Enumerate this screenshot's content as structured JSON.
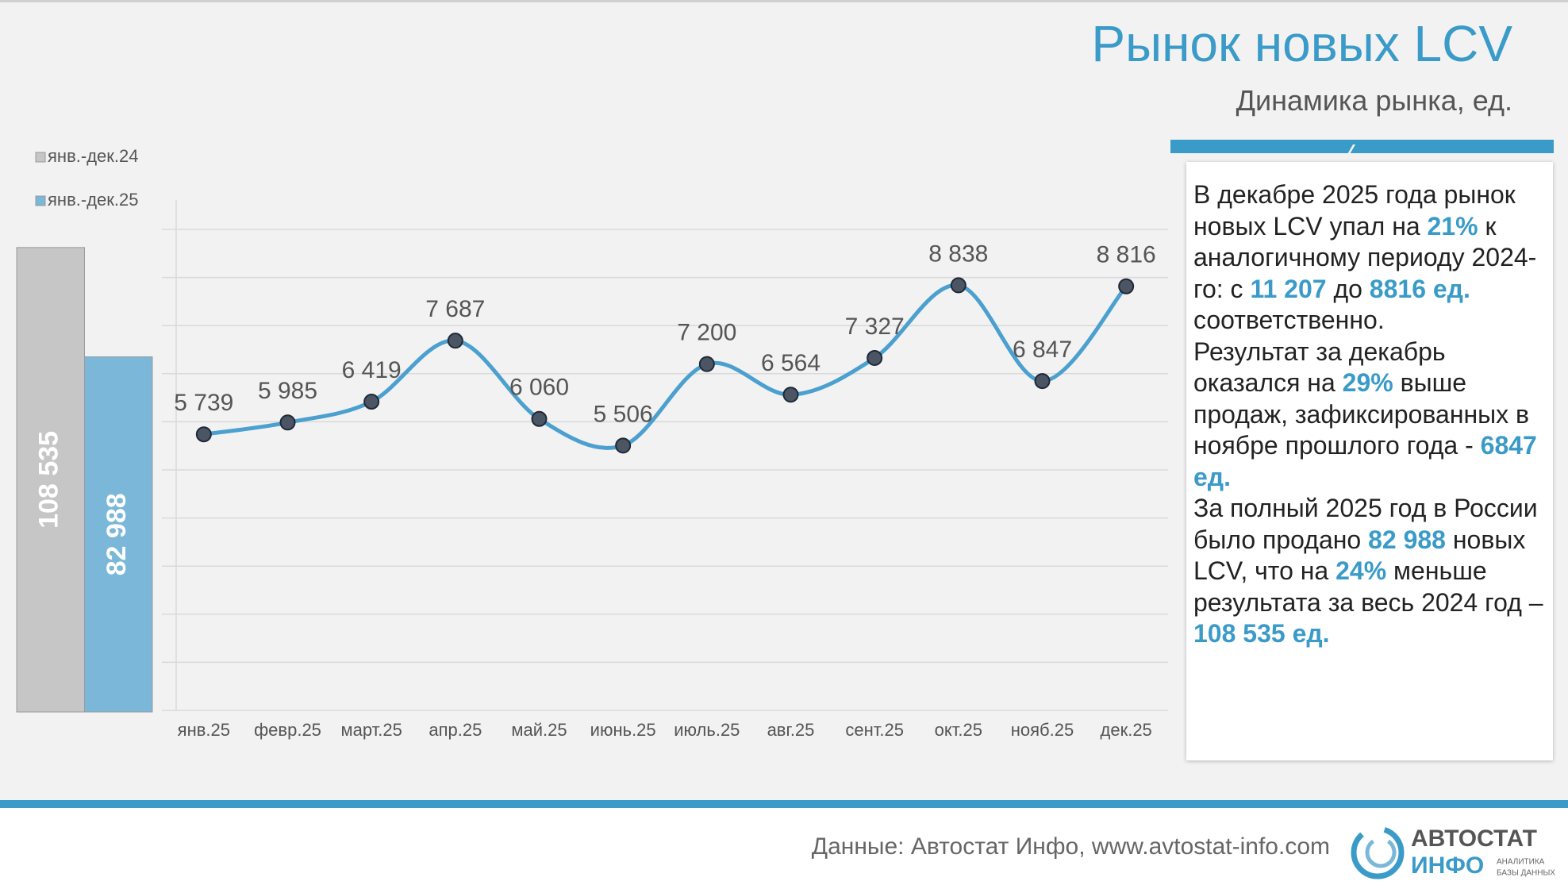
{
  "header": {
    "title": "Рынок новых LCV",
    "subtitle": "Динамика рынка, ед."
  },
  "chart_data": [
    {
      "type": "bar",
      "series": [
        {
          "name": "янв.-дек.24",
          "color": "#c6c6c6",
          "values": [
            108535
          ],
          "value_labels": [
            "108 535"
          ]
        },
        {
          "name": "янв.-дек.25",
          "color": "#7ab7d8",
          "values": [
            82988
          ],
          "value_labels": [
            "82 988"
          ]
        }
      ],
      "ylim": [
        0,
        120000
      ]
    },
    {
      "type": "line",
      "categories": [
        "янв.25",
        "февр.25",
        "март.25",
        "апр.25",
        "май.25",
        "июнь.25",
        "июль.25",
        "авг.25",
        "сент.25",
        "окт.25",
        "нояб.25",
        "дек.25"
      ],
      "values": [
        5739,
        5985,
        6419,
        7687,
        6060,
        5506,
        7200,
        6564,
        7327,
        8838,
        6847,
        8816
      ],
      "value_labels": [
        "5 739",
        "5 985",
        "6 419",
        "7 687",
        "6 060",
        "5 506",
        "7 200",
        "6 564",
        "7 327",
        "8 838",
        "6 847",
        "8 816"
      ],
      "color": "#4ba0cf",
      "marker_color": "#4b5563",
      "smooth": true,
      "ylim": [
        0,
        10000
      ],
      "yticks": [
        0,
        1000,
        2000,
        3000,
        4000,
        5000,
        6000,
        7000,
        8000,
        9000,
        10000
      ],
      "ytick_labels": false,
      "grid": true
    }
  ],
  "commentary": {
    "paragraphs": [
      {
        "segments": [
          {
            "text": "В декабре 2025 года рынок новых LCV упал на ",
            "highlight": false
          },
          {
            "text": "21%",
            "highlight": true
          },
          {
            "text": " к аналогичному периоду 2024-го: с ",
            "highlight": false
          },
          {
            "text": "11 207",
            "highlight": true
          },
          {
            "text": " до ",
            "highlight": false
          },
          {
            "text": "8816 ед.",
            "highlight": true
          },
          {
            "text": " соответственно.",
            "highlight": false
          }
        ]
      },
      {
        "segments": [
          {
            "text": "Результат за декабрь оказался на ",
            "highlight": false
          },
          {
            "text": "29%",
            "highlight": true
          },
          {
            "text": " выше продаж, зафиксированных в ноябре прошлого года  - ",
            "highlight": false
          },
          {
            "text": "6847 ед.",
            "highlight": true
          }
        ]
      },
      {
        "segments": [
          {
            "text": "За полный 2025 год в России было продано ",
            "highlight": false
          },
          {
            "text": "82 988",
            "highlight": true
          },
          {
            "text": " новых LCV, что на ",
            "highlight": false
          },
          {
            "text": "24%",
            "highlight": true
          },
          {
            "text": " меньше результата за весь 2024 год – ",
            "highlight": false
          },
          {
            "text": "108 535 ед.",
            "highlight": true
          }
        ]
      }
    ]
  },
  "footer": {
    "source": "Данные: Автостат Инфо, www.avtostat-info.com",
    "logo": {
      "line1": "АВТОСТАТ",
      "line2": "ИНФО",
      "tagline1": "АНАЛИТИКА",
      "tagline2": "БАЗЫ ДАННЫХ"
    }
  }
}
